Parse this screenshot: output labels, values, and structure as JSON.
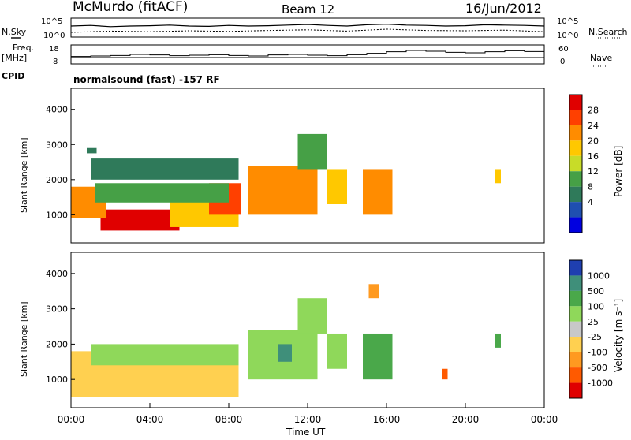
{
  "header": {
    "station": "McMurdo (fitACF)",
    "beam": "Beam 12",
    "date": "16/Jun/2012"
  },
  "side_labels": {
    "nsky": "N.Sky",
    "nsearch": "N.Search",
    "freq_line1": "Freq.",
    "freq_line2": "[MHz]",
    "nave": "Nave",
    "cpid": "CPID",
    "cpid_value": "normalsound (fast) -157 RF"
  },
  "chart_data": [
    {
      "type": "line",
      "title": "N.Sky / N.Search",
      "yticks_left": [
        "10^5",
        "10^0"
      ],
      "yticks_right": [
        "10^5",
        "10^0"
      ],
      "series": [
        {
          "name": "N.Sky",
          "style": "solid",
          "x_hours": [
            0,
            1,
            2,
            3,
            4,
            5,
            6,
            7,
            8,
            9,
            10,
            11,
            12,
            13,
            14,
            15,
            16,
            17,
            18,
            19,
            20,
            21,
            22,
            23,
            24
          ],
          "log10_values": [
            3.0,
            3.2,
            2.8,
            3.0,
            3.1,
            3.3,
            3.0,
            2.9,
            3.2,
            3.0,
            3.1,
            3.3,
            3.5,
            3.2,
            3.0,
            3.4,
            3.6,
            3.3,
            3.2,
            3.0,
            3.1,
            3.4,
            3.3,
            3.2,
            3.0
          ]
        },
        {
          "name": "N.Search",
          "style": "dotted",
          "x_hours": [
            0,
            2,
            4,
            6,
            8,
            10,
            12,
            14,
            16,
            18,
            20,
            22,
            24
          ],
          "log10_values": [
            1.0,
            1.4,
            1.2,
            1.5,
            1.3,
            1.6,
            1.8,
            1.4,
            2.0,
            1.6,
            1.5,
            1.7,
            1.2
          ]
        }
      ]
    },
    {
      "type": "line",
      "title": "Freq / Nave",
      "yticks_left": [
        "18",
        "8"
      ],
      "yticks_right": [
        "60",
        "0"
      ],
      "series": [
        {
          "name": "Freq.",
          "units": "MHz",
          "x_hours": [
            0,
            24
          ],
          "values": [
            11,
            11
          ]
        },
        {
          "name": "Nave",
          "x_hours": [
            0,
            1,
            2,
            3,
            4,
            5,
            6,
            7,
            8,
            9,
            10,
            11,
            12,
            13,
            14,
            15,
            16,
            17,
            18,
            19,
            20,
            21,
            22,
            23,
            24
          ],
          "values": [
            22,
            24,
            26,
            30,
            28,
            25,
            27,
            29,
            26,
            24,
            28,
            30,
            27,
            25,
            29,
            34,
            40,
            45,
            42,
            38,
            36,
            40,
            44,
            41,
            38
          ]
        }
      ]
    },
    {
      "type": "heatmap",
      "name": "power",
      "xlabel": "",
      "ylabel": "Slant Range [km]",
      "yticks": [
        1000,
        2000,
        3000,
        4000
      ],
      "ylim": [
        200,
        4600
      ],
      "xlim_hours": [
        0,
        24
      ],
      "colorbar": {
        "label": "Power [dB]",
        "ticks": [
          "28",
          "24",
          "20",
          "16",
          "12",
          "8",
          "4"
        ],
        "colors": [
          "#e00000",
          "#ff4000",
          "#ff8c00",
          "#ffc800",
          "#c8dc28",
          "#46a046",
          "#2f7a5a",
          "#1f4fb0",
          "#0000e0"
        ]
      },
      "regions": [
        {
          "t0": 1.5,
          "t1": 5.5,
          "r0": 550,
          "r1": 1150,
          "level": 28
        },
        {
          "t0": 0.0,
          "t1": 1.8,
          "r0": 900,
          "r1": 1800,
          "level": 20
        },
        {
          "t0": 5.0,
          "t1": 8.5,
          "r0": 650,
          "r1": 1400,
          "level": 16
        },
        {
          "t0": 7.0,
          "t1": 8.6,
          "r0": 1000,
          "r1": 1900,
          "level": 24
        },
        {
          "t0": 1.2,
          "t1": 8.0,
          "r0": 1350,
          "r1": 1900,
          "level": 12
        },
        {
          "t0": 9.0,
          "t1": 12.5,
          "r0": 1000,
          "r1": 2400,
          "level": 20
        },
        {
          "t0": 11.5,
          "t1": 13.0,
          "r0": 2300,
          "r1": 3300,
          "level": 12
        },
        {
          "t0": 13.0,
          "t1": 14.0,
          "r0": 1300,
          "r1": 2300,
          "level": 16
        },
        {
          "t0": 14.8,
          "t1": 16.3,
          "r0": 1000,
          "r1": 2300,
          "level": 20
        },
        {
          "t0": 1.0,
          "t1": 8.5,
          "r0": 2000,
          "r1": 2600,
          "level": 8
        },
        {
          "t0": 0.8,
          "t1": 1.3,
          "r0": 2750,
          "r1": 2900,
          "level": 6
        },
        {
          "t0": 21.5,
          "t1": 21.8,
          "r0": 1900,
          "r1": 2300,
          "level": 16
        }
      ]
    },
    {
      "type": "heatmap",
      "name": "velocity",
      "xlabel": "Time UT",
      "ylabel": "Slant Range [km]",
      "yticks": [
        1000,
        2000,
        3000,
        4000
      ],
      "ylim": [
        200,
        4600
      ],
      "xlim_hours": [
        0,
        24
      ],
      "xticks": [
        "00:00",
        "04:00",
        "08:00",
        "12:00",
        "16:00",
        "20:00",
        "00:00"
      ],
      "colorbar": {
        "label": "Velocity [m s⁻¹]",
        "ticks": [
          "1000",
          "500",
          "100",
          "25",
          "-25",
          "-100",
          "-500",
          "-1000"
        ],
        "colors": [
          "#1f3fb0",
          "#3f8f7a",
          "#4aa84a",
          "#8fd85a",
          "#c8c8c8",
          "#ffd050",
          "#ff9a20",
          "#ff5a00",
          "#e00000"
        ]
      },
      "regions": [
        {
          "t0": 0.0,
          "t1": 8.5,
          "r0": 500,
          "r1": 1800,
          "level": -25
        },
        {
          "t0": 1.0,
          "t1": 8.5,
          "r0": 1400,
          "r1": 2000,
          "level": 100
        },
        {
          "t0": 9.0,
          "t1": 12.5,
          "r0": 1000,
          "r1": 2400,
          "level": 100
        },
        {
          "t0": 10.5,
          "t1": 11.2,
          "r0": 1500,
          "r1": 2000,
          "level": 1000
        },
        {
          "t0": 11.5,
          "t1": 13.0,
          "r0": 2300,
          "r1": 3300,
          "level": 100
        },
        {
          "t0": 13.0,
          "t1": 14.0,
          "r0": 1300,
          "r1": 2300,
          "level": 100
        },
        {
          "t0": 14.8,
          "t1": 16.3,
          "r0": 1000,
          "r1": 2300,
          "level": 500
        },
        {
          "t0": 15.1,
          "t1": 15.6,
          "r0": 3300,
          "r1": 3700,
          "level": -100
        },
        {
          "t0": 18.8,
          "t1": 19.1,
          "r0": 1000,
          "r1": 1300,
          "level": -500
        },
        {
          "t0": 21.5,
          "t1": 21.8,
          "r0": 1900,
          "r1": 2300,
          "level": 500
        }
      ]
    }
  ]
}
